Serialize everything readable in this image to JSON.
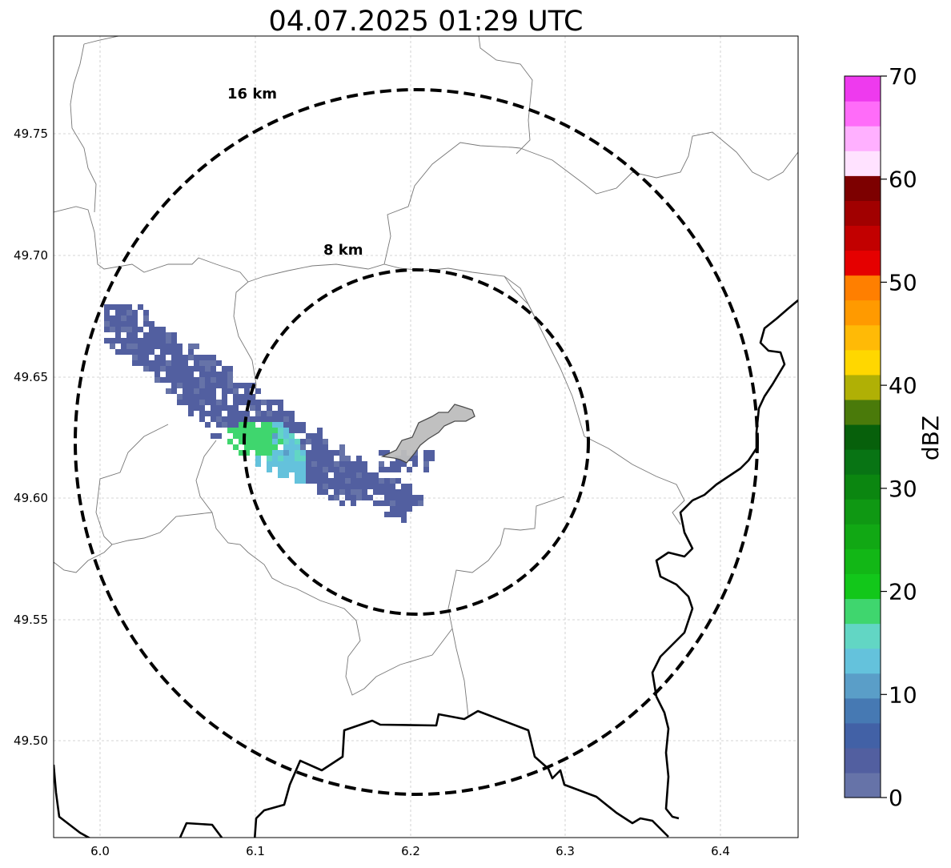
{
  "title": "04.07.2025 01:29 UTC",
  "colorbar": {
    "label": "dBZ",
    "min": 0,
    "max": 70,
    "step": 2.5,
    "tick_labels": [
      "0",
      "10",
      "20",
      "30",
      "40",
      "50",
      "60",
      "70"
    ],
    "colors": [
      "#6673a8",
      "#525fa0",
      "#4261a6",
      "#4679b3",
      "#5a9ec8",
      "#64c2dc",
      "#62d6c4",
      "#3fd66e",
      "#12c71a",
      "#12b716",
      "#11a814",
      "#0f9813",
      "#0b8610",
      "#087414",
      "#07600b",
      "#4a7a0a",
      "#b0b005",
      "#ffd700",
      "#ffba06",
      "#ff9a00",
      "#ff7f00",
      "#e50000",
      "#c20000",
      "#a10000",
      "#7d0000",
      "#ffe2ff",
      "#ffb0ff",
      "#ff6cf9",
      "#ee3aee"
    ]
  },
  "axes": {
    "x_ticks": [
      "6.0",
      "6.1",
      "6.2",
      "6.3",
      "6.4"
    ],
    "y_ticks": [
      "49.75",
      "49.70",
      "49.65",
      "49.60",
      "49.55",
      "49.50"
    ],
    "lon_range": [
      5.97,
      6.45
    ],
    "lat_range": [
      49.46,
      49.79
    ],
    "grid": true
  },
  "range_rings": [
    {
      "label": "8 km"
    },
    {
      "label": "16 km"
    }
  ],
  "radar_site": {
    "lon": 6.203,
    "lat": 49.623
  },
  "chart_data": {
    "type": "heatmap",
    "title": "04.07.2025 01:29 UTC",
    "units": "dBZ",
    "value_range": [
      0,
      70
    ],
    "echo_regions": [
      {
        "center": [
          6.05,
          49.65
        ],
        "reflectivity_dbz": [
          2,
          5
        ]
      },
      {
        "center": [
          6.11,
          49.62
        ],
        "reflectivity_dbz": [
          12,
          20
        ]
      },
      {
        "center": [
          6.16,
          49.6
        ],
        "reflectivity_dbz": [
          2,
          5
        ]
      }
    ]
  }
}
